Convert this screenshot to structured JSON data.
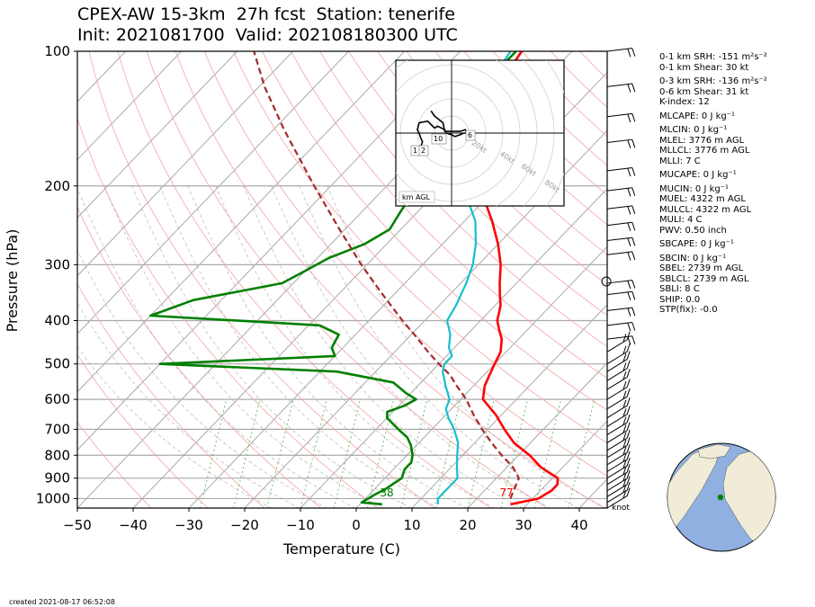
{
  "title": {
    "line1": "CPEX-AW 15-3km  27h fcst  Station: tenerife",
    "line2": "Init: 2021081700  Valid: 202108180300 UTC"
  },
  "stats": [
    "0-1 km SRH: -151 m²s⁻²",
    "0-1 km Shear: 30 kt",
    "0-3 km SRH: -136 m²s⁻²",
    "0-6 km Shear: 31 kt",
    "K-index: 12",
    "MLCAPE: 0 J kg⁻¹",
    "MLCIN: 0 J kg⁻¹",
    "MLEL: 3776 m AGL",
    "MLLCL: 3776 m AGL",
    "MLLI: 7 C",
    "MUCAPE: 0 J kg⁻¹",
    "MUCIN: 0 J kg⁻¹",
    "MUEL: 4322 m AGL",
    "MULCL: 4322 m AGL",
    "MULI: 4 C",
    "PWV: 0.50 inch",
    "SBCAPE: 0 J kg⁻¹",
    "SBCIN: 0 J kg⁻¹",
    "SBEL: 2739 m AGL",
    "SBLCL: 2739 m AGL",
    "SBLI: 8 C",
    "SHIP: 0.0",
    "STP(fix): -0.0"
  ],
  "footer": "created 2021-08-17 06:52:08",
  "knot_label": "knot",
  "hodograph": {
    "ring_labels": [
      "20kt",
      "40kt",
      "60kt",
      "80kt"
    ],
    "height_labels": [
      "1",
      "2",
      "6",
      "10"
    ],
    "legend": "km AGL"
  },
  "surface_labels": {
    "dewpoint": "38",
    "temperature": "77"
  },
  "colors": {
    "temperature": "#ff0000",
    "dewpoint": "#008000",
    "wetbulb": "#17becf",
    "parcel": "#a52a2a",
    "dry_adiabat": "#f4a3a3",
    "moist_adiabat": "#b0b0b0",
    "mixing_ratio": "#6cc06c",
    "ocean": "#8fb0e0",
    "land": "#f0ecd8"
  },
  "chart_data": {
    "type": "skew-t",
    "xlabel": "Temperature (C)",
    "ylabel": "Pressure (hPa)",
    "xlim": [
      -50,
      45
    ],
    "ylim": [
      1050,
      100
    ],
    "y_scale": "log",
    "xticks": [
      -50,
      -40,
      -30,
      -20,
      -10,
      0,
      10,
      20,
      30,
      40
    ],
    "yticks": [
      100,
      200,
      300,
      400,
      500,
      600,
      700,
      800,
      900,
      1000
    ],
    "grid": true,
    "series": [
      {
        "key": "temperature",
        "points": [
          [
            1030,
            27
          ],
          [
            1000,
            31
          ],
          [
            960,
            32
          ],
          [
            930,
            32
          ],
          [
            900,
            31
          ],
          [
            870,
            28
          ],
          [
            850,
            26
          ],
          [
            800,
            22
          ],
          [
            750,
            17
          ],
          [
            700,
            13
          ],
          [
            650,
            9
          ],
          [
            600,
            4
          ],
          [
            560,
            2
          ],
          [
            530,
            1
          ],
          [
            500,
            0
          ],
          [
            470,
            -1
          ],
          [
            440,
            -3
          ],
          [
            420,
            -5
          ],
          [
            400,
            -7
          ],
          [
            370,
            -9
          ],
          [
            350,
            -11
          ],
          [
            330,
            -13
          ],
          [
            300,
            -16
          ],
          [
            270,
            -20
          ],
          [
            240,
            -25
          ],
          [
            220,
            -29
          ],
          [
            200,
            -32
          ],
          [
            180,
            -35
          ],
          [
            160,
            -39
          ],
          [
            140,
            -43
          ],
          [
            125,
            -46
          ],
          [
            110,
            -48
          ],
          [
            100,
            -49
          ]
        ]
      },
      {
        "key": "wetbulb",
        "points": [
          [
            1030,
            14
          ],
          [
            1000,
            13
          ],
          [
            950,
            13
          ],
          [
            900,
            13
          ],
          [
            850,
            11
          ],
          [
            800,
            9
          ],
          [
            750,
            7
          ],
          [
            700,
            4
          ],
          [
            660,
            1
          ],
          [
            630,
            -1
          ],
          [
            600,
            -2
          ],
          [
            560,
            -5
          ],
          [
            520,
            -8
          ],
          [
            500,
            -9
          ],
          [
            480,
            -9
          ],
          [
            460,
            -11
          ],
          [
            430,
            -13
          ],
          [
            400,
            -16
          ],
          [
            370,
            -17
          ],
          [
            330,
            -19
          ],
          [
            300,
            -21
          ],
          [
            270,
            -24
          ],
          [
            240,
            -28
          ],
          [
            220,
            -32
          ],
          [
            200,
            -34
          ],
          [
            170,
            -39
          ],
          [
            150,
            -43
          ],
          [
            130,
            -47
          ],
          [
            110,
            -50
          ],
          [
            100,
            -51
          ]
        ]
      },
      {
        "key": "dewpoint",
        "points": [
          [
            1030,
            4
          ],
          [
            1020,
            0
          ],
          [
            980,
            1
          ],
          [
            950,
            2
          ],
          [
            900,
            3
          ],
          [
            860,
            2
          ],
          [
            830,
            2
          ],
          [
            800,
            1
          ],
          [
            760,
            -1
          ],
          [
            730,
            -3
          ],
          [
            700,
            -6
          ],
          [
            660,
            -10
          ],
          [
            640,
            -11
          ],
          [
            620,
            -9
          ],
          [
            600,
            -8
          ],
          [
            580,
            -11
          ],
          [
            550,
            -15
          ],
          [
            520,
            -27
          ],
          [
            500,
            -60
          ],
          [
            480,
            -30
          ],
          [
            460,
            -32
          ],
          [
            430,
            -33
          ],
          [
            410,
            -38
          ],
          [
            390,
            -70
          ],
          [
            360,
            -65
          ],
          [
            330,
            -52
          ],
          [
            310,
            -50
          ],
          [
            290,
            -48
          ],
          [
            270,
            -44
          ],
          [
            250,
            -42
          ],
          [
            230,
            -43
          ],
          [
            210,
            -44
          ],
          [
            190,
            -46
          ],
          [
            170,
            -47
          ],
          [
            150,
            -49
          ],
          [
            130,
            -50
          ],
          [
            115,
            -50
          ],
          [
            100,
            -50
          ]
        ]
      },
      {
        "key": "parcel",
        "points": [
          [
            1000,
            26
          ],
          [
            950,
            25
          ],
          [
            900,
            24
          ],
          [
            850,
            21
          ],
          [
            800,
            17
          ],
          [
            750,
            13
          ],
          [
            700,
            9
          ],
          [
            650,
            5
          ],
          [
            600,
            1
          ],
          [
            560,
            -3
          ],
          [
            530,
            -6
          ],
          [
            500,
            -10
          ],
          [
            470,
            -14
          ],
          [
            440,
            -18
          ],
          [
            400,
            -24
          ],
          [
            350,
            -32
          ],
          [
            300,
            -41
          ],
          [
            250,
            -51
          ],
          [
            200,
            -63
          ],
          [
            150,
            -78
          ],
          [
            120,
            -89
          ],
          [
            100,
            -97
          ]
        ]
      }
    ],
    "wind_barbs_hpa": [
      100,
      120,
      140,
      160,
      185,
      205,
      225,
      245,
      265,
      285,
      330,
      350,
      380,
      410,
      440,
      470,
      500,
      520,
      545,
      570,
      600,
      630,
      660,
      690,
      720,
      750,
      780,
      810,
      840,
      870,
      900,
      930,
      960,
      990,
      1020,
      1050
    ],
    "hodograph": {
      "type": "line",
      "u_kt": [
        -20,
        -18,
        -17,
        -18,
        -19,
        -20,
        -19,
        -14,
        -12,
        -10,
        -8,
        -6,
        -4,
        -3,
        0,
        2,
        5,
        7,
        9,
        8,
        5,
        -4,
        -5,
        -10,
        -12
      ],
      "v_kt": [
        -10,
        -8,
        -5,
        -3,
        0,
        2,
        6,
        7,
        5,
        3,
        4,
        3,
        2,
        0,
        -1,
        -2,
        -1,
        0,
        0,
        2,
        1,
        1,
        6,
        10,
        13
      ]
    }
  }
}
